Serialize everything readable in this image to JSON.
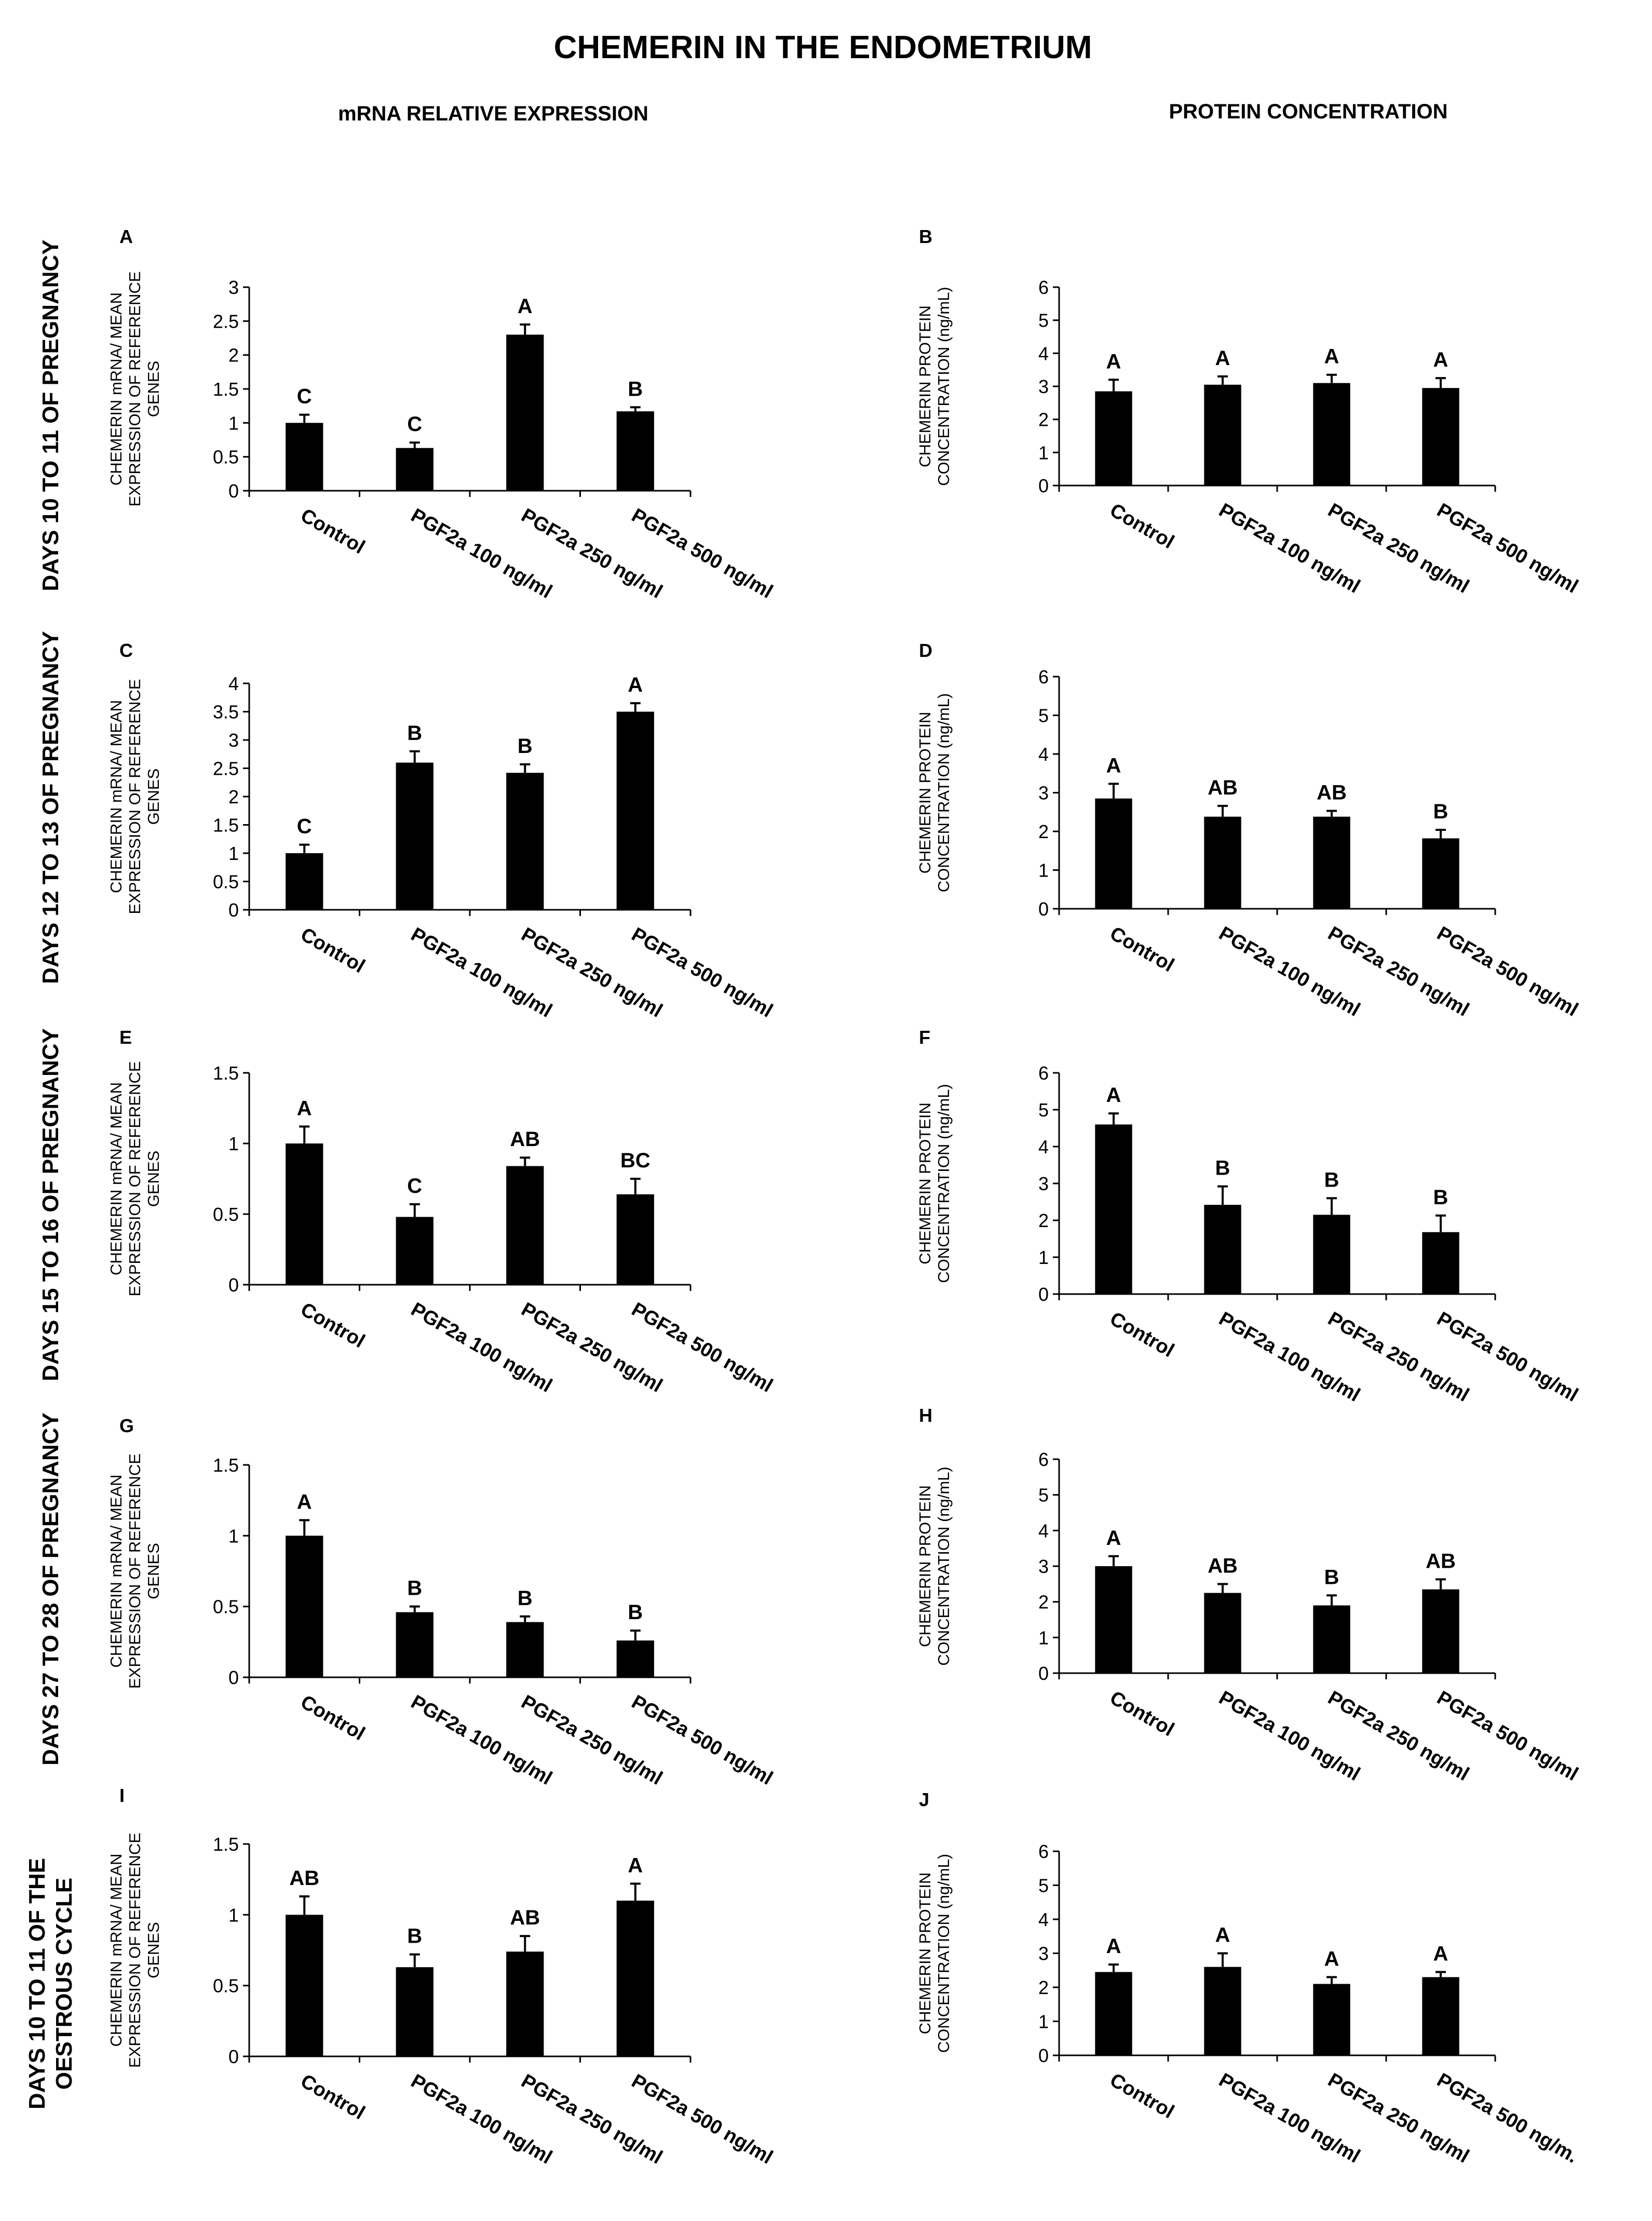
{
  "title": "CHEMERIN IN THE ENDOMETRIUM",
  "column_headers": [
    "mRNA RELATIVE EXPRESSION",
    "PROTEIN CONCENTRATION"
  ],
  "row_labels": [
    [
      "DAYS 10 TO 11 OF PREGNANCY"
    ],
    [
      "DAYS 12 TO 13 OF PREGNANCY"
    ],
    [
      "DAYS 15 TO 16 OF PREGNANCY"
    ],
    [
      "DAYS 27 TO 28 OF PREGNANCY"
    ],
    [
      "DAYS 10 TO 11 OF THE",
      "OESTROUS CYCLE"
    ]
  ],
  "colors": {
    "bar": "#000000",
    "axis": "#000000",
    "background": "#ffffff"
  },
  "chart_data": [
    {
      "panel": "A",
      "type": "bar",
      "ylabel": [
        "CHEMERIN mRNA/ MEAN",
        "EXPRESSION OF REFERENCE",
        "GENES"
      ],
      "categories": [
        "Control",
        "PGF2a 100 ng/ml",
        "PGF2a 250 ng/ml",
        "PGF2a 500 ng/ml"
      ],
      "values": [
        1.0,
        0.63,
        2.3,
        1.17
      ],
      "errors": [
        0.12,
        0.08,
        0.15,
        0.06
      ],
      "significance": [
        "C",
        "C",
        "A",
        "B"
      ],
      "ylim": [
        0,
        3
      ],
      "yticks": [
        "0",
        "0.5",
        "1",
        "1.5",
        "2",
        "2.5",
        "3"
      ]
    },
    {
      "panel": "B",
      "type": "bar",
      "ylabel": [
        "CHEMERIN PROTEIN",
        "CONCENTRATION (ng/mL)"
      ],
      "categories": [
        "Control",
        "PGF2a 100 ng/ml",
        "PGF2a 250 ng/ml",
        "PGF2a 500 ng/ml"
      ],
      "values": [
        2.85,
        3.05,
        3.1,
        2.95
      ],
      "errors": [
        0.35,
        0.25,
        0.25,
        0.3
      ],
      "significance": [
        "A",
        "A",
        "A",
        "A"
      ],
      "ylim": [
        0,
        6
      ],
      "yticks": [
        "0",
        "1",
        "2",
        "3",
        "4",
        "5",
        "6"
      ]
    },
    {
      "panel": "C",
      "type": "bar",
      "ylabel": [
        "CHEMERIN mRNA/ MEAN",
        "EXPRESSION OF REFERENCE",
        "GENES"
      ],
      "categories": [
        "Control",
        "PGF2a 100 ng/ml",
        "PGF2a 250 ng/ml",
        "PGF2a 500 ng/ml"
      ],
      "values": [
        1.0,
        2.6,
        2.42,
        3.5
      ],
      "errors": [
        0.15,
        0.2,
        0.15,
        0.15
      ],
      "significance": [
        "C",
        "B",
        "B",
        "A"
      ],
      "ylim": [
        0,
        4
      ],
      "yticks": [
        "0",
        "0.5",
        "1",
        "1.5",
        "2",
        "2.5",
        "3",
        "3.5",
        "4"
      ]
    },
    {
      "panel": "D",
      "type": "bar",
      "ylabel": [
        "CHEMERIN PROTEIN",
        "CONCENTRATION (ng/mL)"
      ],
      "categories": [
        "Control",
        "PGF2a 100 ng/ml",
        "PGF2a 250 ng/ml",
        "PGF2a 500 ng/ml"
      ],
      "values": [
        2.85,
        2.38,
        2.38,
        1.82
      ],
      "errors": [
        0.38,
        0.28,
        0.15,
        0.22
      ],
      "significance": [
        "A",
        "AB",
        "AB",
        "B"
      ],
      "ylim": [
        0,
        6
      ],
      "yticks": [
        "0",
        "1",
        "2",
        "3",
        "4",
        "5",
        "6"
      ]
    },
    {
      "panel": "E",
      "type": "bar",
      "ylabel": [
        "CHEMERIN mRNA/ MEAN",
        "EXPRESSION OF REFERENCE",
        "GENES"
      ],
      "categories": [
        "Control",
        "PGF2a 100 ng/ml",
        "PGF2a 250 ng/ml",
        "PGF2a 500 ng/ml"
      ],
      "values": [
        1.0,
        0.48,
        0.84,
        0.64
      ],
      "errors": [
        0.12,
        0.09,
        0.06,
        0.11
      ],
      "significance": [
        "A",
        "C",
        "AB",
        "BC"
      ],
      "ylim": [
        0,
        1.5
      ],
      "yticks": [
        "0",
        "0.5",
        "1",
        "1.5"
      ]
    },
    {
      "panel": "F",
      "type": "bar",
      "ylabel": [
        "CHEMERIN PROTEIN",
        "CONCENTRATION (ng/mL)"
      ],
      "categories": [
        "Control",
        "PGF2a 100 ng/ml",
        "PGF2a 250 ng/ml",
        "PGF2a 500 ng/ml"
      ],
      "values": [
        4.6,
        2.42,
        2.15,
        1.68
      ],
      "errors": [
        0.3,
        0.5,
        0.45,
        0.45
      ],
      "significance": [
        "A",
        "B",
        "B",
        "B"
      ],
      "ylim": [
        0,
        6
      ],
      "yticks": [
        "0",
        "1",
        "2",
        "3",
        "4",
        "5",
        "6"
      ]
    },
    {
      "panel": "G",
      "type": "bar",
      "ylabel": [
        "CHEMERIN mRNA/ MEAN",
        "EXPRESSION OF REFERENCE",
        "GENES"
      ],
      "categories": [
        "Control",
        "PGF2a 100 ng/ml",
        "PGF2a 250 ng/ml",
        "PGF2a 500 ng/ml"
      ],
      "values": [
        1.0,
        0.46,
        0.39,
        0.26
      ],
      "errors": [
        0.11,
        0.04,
        0.04,
        0.07
      ],
      "significance": [
        "A",
        "B",
        "B",
        "B"
      ],
      "ylim": [
        0,
        1.5
      ],
      "yticks": [
        "0",
        "0.5",
        "1",
        "1.5"
      ]
    },
    {
      "panel": "H",
      "type": "bar",
      "ylabel": [
        "CHEMERIN PROTEIN",
        "CONCENTRATION (ng/mL)"
      ],
      "categories": [
        "Control",
        "PGF2a 100 ng/ml",
        "PGF2a 250 ng/ml",
        "PGF2a 500 ng/ml"
      ],
      "values": [
        3.0,
        2.25,
        1.9,
        2.35
      ],
      "errors": [
        0.28,
        0.25,
        0.28,
        0.28
      ],
      "significance": [
        "A",
        "AB",
        "B",
        "AB"
      ],
      "ylim": [
        0,
        6
      ],
      "yticks": [
        "0",
        "1",
        "2",
        "3",
        "4",
        "5",
        "6"
      ]
    },
    {
      "panel": "I",
      "type": "bar",
      "ylabel": [
        "CHEMERIN mRNA/ MEAN",
        "EXPRESSION OF REFERENCE",
        "GENES"
      ],
      "categories": [
        "Control",
        "PGF2a 100 ng/ml",
        "PGF2a 250 ng/ml",
        "PGF2a 500 ng/ml"
      ],
      "values": [
        1.0,
        0.63,
        0.74,
        1.1
      ],
      "errors": [
        0.13,
        0.09,
        0.11,
        0.12
      ],
      "significance": [
        "AB",
        "B",
        "AB",
        "A"
      ],
      "ylim": [
        0,
        1.5
      ],
      "yticks": [
        "0",
        "0.5",
        "1",
        "1.5"
      ]
    },
    {
      "panel": "J",
      "type": "bar",
      "ylabel": [
        "CHEMERIN PROTEIN",
        "CONCENTRATION (ng/mL)"
      ],
      "categories": [
        "Control",
        "PGF2a 100 ng/ml",
        "PGF2a 250 ng/ml",
        "PGF2a 500 ng/m."
      ],
      "values": [
        2.45,
        2.6,
        2.1,
        2.3
      ],
      "errors": [
        0.22,
        0.4,
        0.2,
        0.15
      ],
      "significance": [
        "A",
        "A",
        "A",
        "A"
      ],
      "ylim": [
        0,
        6
      ],
      "yticks": [
        "0",
        "1",
        "2",
        "3",
        "4",
        "5",
        "6"
      ]
    }
  ]
}
